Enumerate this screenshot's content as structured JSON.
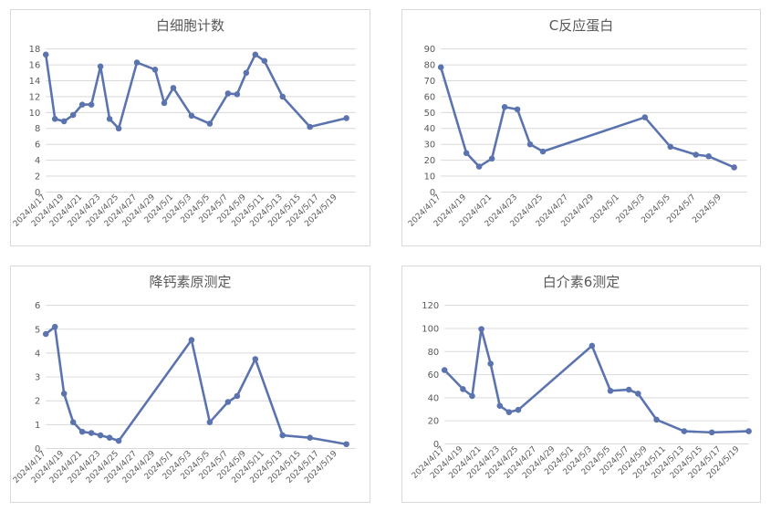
{
  "colors": {
    "series": "#5B73AE",
    "grid": "#d9d9d9",
    "axis_text": "#595959"
  },
  "chart_data": [
    {
      "type": "line",
      "title": "白细胞计数",
      "xlabel": "",
      "ylabel": "",
      "ylim": [
        0,
        18
      ],
      "ytick_step": 2,
      "xlim": [
        "2024/4/17",
        "2024/5/21"
      ],
      "xtick_labels": [
        "2024/4/17",
        "2024/4/19",
        "2024/4/21",
        "2024/4/23",
        "2024/4/25",
        "2024/4/27",
        "2024/4/29",
        "2024/5/1",
        "2024/5/3",
        "2024/5/5",
        "2024/5/7",
        "2024/5/9",
        "2024/5/11",
        "2024/5/13",
        "2024/5/15",
        "2024/5/17",
        "2024/5/19"
      ],
      "grid": true,
      "legend": "none",
      "points": [
        [
          "2024/4/17",
          17.3
        ],
        [
          "2024/4/18",
          9.2
        ],
        [
          "2024/4/19",
          8.9
        ],
        [
          "2024/4/20",
          9.7
        ],
        [
          "2024/4/21",
          11.0
        ],
        [
          "2024/4/22",
          11.0
        ],
        [
          "2024/4/23",
          15.8
        ],
        [
          "2024/4/24",
          9.2
        ],
        [
          "2024/4/25",
          8.0
        ],
        [
          "2024/4/27",
          16.3
        ],
        [
          "2024/4/29",
          15.4
        ],
        [
          "2024/4/30",
          11.2
        ],
        [
          "2024/5/1",
          13.1
        ],
        [
          "2024/5/3",
          9.6
        ],
        [
          "2024/5/5",
          8.6
        ],
        [
          "2024/5/7",
          12.4
        ],
        [
          "2024/5/8",
          12.3
        ],
        [
          "2024/5/9",
          15.0
        ],
        [
          "2024/5/10",
          17.3
        ],
        [
          "2024/5/11",
          16.5
        ],
        [
          "2024/5/13",
          12.0
        ],
        [
          "2024/5/16",
          8.2
        ],
        [
          "2024/5/20",
          9.3
        ]
      ]
    },
    {
      "type": "line",
      "title": "C反应蛋白",
      "xlabel": "",
      "ylabel": "",
      "ylim": [
        0,
        90
      ],
      "ytick_step": 10,
      "xlim": [
        "2024/4/17",
        "2024/5/11"
      ],
      "xtick_labels": [
        "2024/4/17",
        "2024/4/19",
        "2024/4/21",
        "2024/4/23",
        "2024/4/25",
        "2024/4/27",
        "2024/4/29",
        "2024/5/1",
        "2024/5/3",
        "2024/5/5",
        "2024/5/7",
        "2024/5/9"
      ],
      "grid": true,
      "legend": "none",
      "points": [
        [
          "2024/4/17",
          78.5
        ],
        [
          "2024/4/19",
          24.5
        ],
        [
          "2024/4/20",
          16.0
        ],
        [
          "2024/4/21",
          21.0
        ],
        [
          "2024/4/22",
          53.5
        ],
        [
          "2024/4/23",
          52.0
        ],
        [
          "2024/4/24",
          30.0
        ],
        [
          "2024/4/25",
          25.5
        ],
        [
          "2024/5/3",
          47.0
        ],
        [
          "2024/5/5",
          28.5
        ],
        [
          "2024/5/7",
          23.5
        ],
        [
          "2024/5/8",
          22.5
        ],
        [
          "2024/5/10",
          15.5
        ]
      ]
    },
    {
      "type": "line",
      "title": "降钙素原测定",
      "xlabel": "",
      "ylabel": "",
      "ylim": [
        0,
        6
      ],
      "ytick_step": 1,
      "xlim": [
        "2024/4/17",
        "2024/5/21"
      ],
      "xtick_labels": [
        "2024/4/17",
        "2024/4/19",
        "2024/4/21",
        "2024/4/23",
        "2024/4/25",
        "2024/4/27",
        "2024/4/29",
        "2024/5/1",
        "2024/5/3",
        "2024/5/5",
        "2024/5/7",
        "2024/5/9",
        "2024/5/11",
        "2024/5/13",
        "2024/5/15",
        "2024/5/17",
        "2024/5/19"
      ],
      "grid": true,
      "legend": "none",
      "points": [
        [
          "2024/4/17",
          4.8
        ],
        [
          "2024/4/18",
          5.1
        ],
        [
          "2024/4/19",
          2.3
        ],
        [
          "2024/4/20",
          1.1
        ],
        [
          "2024/4/21",
          0.7
        ],
        [
          "2024/4/22",
          0.65
        ],
        [
          "2024/4/23",
          0.55
        ],
        [
          "2024/4/24",
          0.45
        ],
        [
          "2024/4/25",
          0.32
        ],
        [
          "2024/5/3",
          4.55
        ],
        [
          "2024/5/5",
          1.1
        ],
        [
          "2024/5/7",
          1.95
        ],
        [
          "2024/5/8",
          2.2
        ],
        [
          "2024/5/10",
          3.75
        ],
        [
          "2024/5/13",
          0.55
        ],
        [
          "2024/5/16",
          0.45
        ],
        [
          "2024/5/20",
          0.18
        ]
      ]
    },
    {
      "type": "line",
      "title": "白介素6测定",
      "xlabel": "",
      "ylabel": "",
      "ylim": [
        0,
        120
      ],
      "ytick_step": 20,
      "xlim": [
        "2024/4/17",
        "2024/5/20"
      ],
      "xtick_labels": [
        "2024/4/17",
        "2024/4/19",
        "2024/4/21",
        "2024/4/23",
        "2024/4/25",
        "2024/4/27",
        "2024/4/29",
        "2024/5/1",
        "2024/5/3",
        "2024/5/5",
        "2024/5/7",
        "2024/5/9",
        "2024/5/11",
        "2024/5/13",
        "2024/5/15",
        "2024/5/17",
        "2024/5/19"
      ],
      "grid": true,
      "legend": "none",
      "points": [
        [
          "2024/4/17",
          64
        ],
        [
          "2024/4/19",
          47.5
        ],
        [
          "2024/4/20",
          41.5
        ],
        [
          "2024/4/21",
          99.5
        ],
        [
          "2024/4/22",
          69.5
        ],
        [
          "2024/4/23",
          33
        ],
        [
          "2024/4/24",
          27.5
        ],
        [
          "2024/4/25",
          29.5
        ],
        [
          "2024/5/3",
          85
        ],
        [
          "2024/5/5",
          46
        ],
        [
          "2024/5/7",
          47
        ],
        [
          "2024/5/8",
          43.5
        ],
        [
          "2024/5/10",
          21
        ],
        [
          "2024/5/13",
          11
        ],
        [
          "2024/5/16",
          10
        ],
        [
          "2024/5/20",
          11
        ]
      ]
    }
  ]
}
